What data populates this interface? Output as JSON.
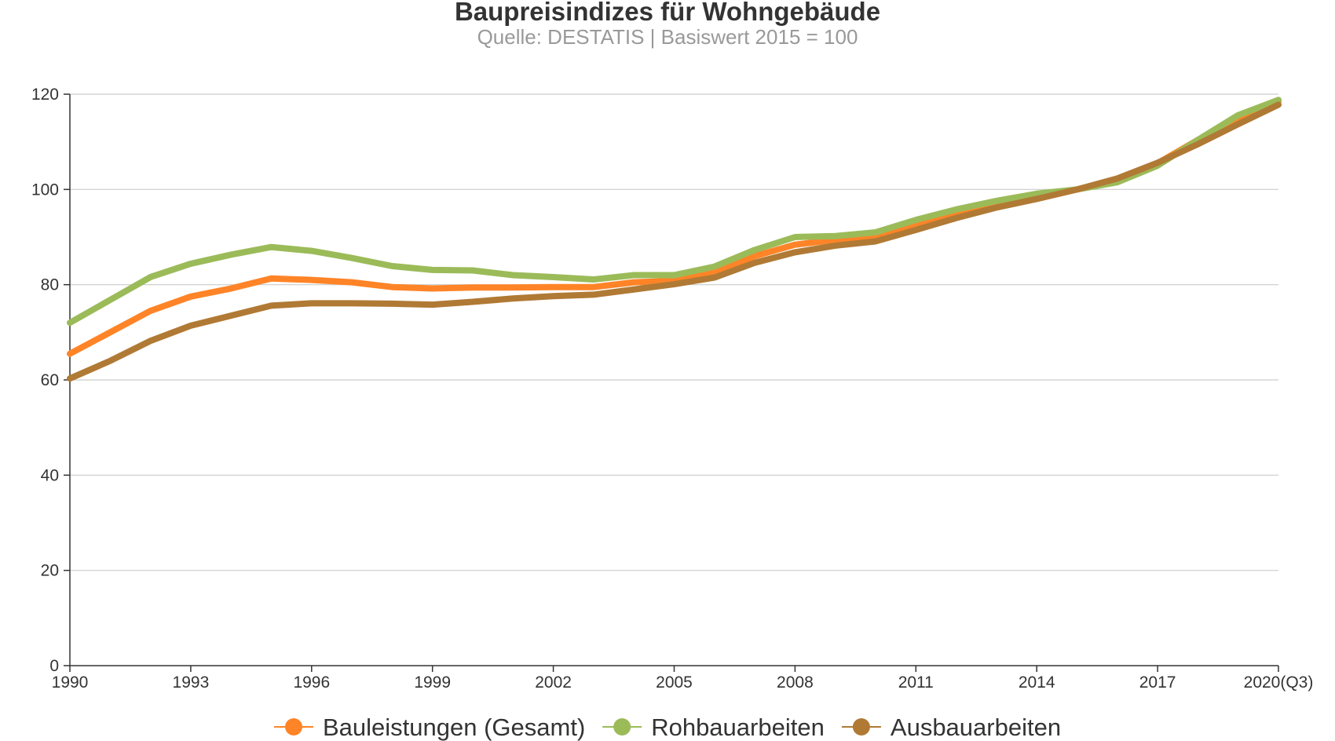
{
  "chart_data": {
    "type": "line",
    "title": "Baupreisindizes für Wohngebäude",
    "subtitle": "Quelle: DESTATIS | Basiswert 2015 = 100",
    "xlabel": "",
    "ylabel": "",
    "x": [
      1990,
      1991,
      1992,
      1993,
      1994,
      1995,
      1996,
      1997,
      1998,
      1999,
      2000,
      2001,
      2002,
      2003,
      2004,
      2005,
      2006,
      2007,
      2008,
      2009,
      2010,
      2011,
      2012,
      2013,
      2014,
      2015,
      2016,
      2017,
      2018,
      2019,
      2020
    ],
    "x_ticks": [
      {
        "value": 1990,
        "label": "1990"
      },
      {
        "value": 1993,
        "label": "1993"
      },
      {
        "value": 1996,
        "label": "1996"
      },
      {
        "value": 1999,
        "label": "1999"
      },
      {
        "value": 2002,
        "label": "2002"
      },
      {
        "value": 2005,
        "label": "2005"
      },
      {
        "value": 2008,
        "label": "2008"
      },
      {
        "value": 2011,
        "label": "2011"
      },
      {
        "value": 2014,
        "label": "2014"
      },
      {
        "value": 2017,
        "label": "2017"
      },
      {
        "value": 2020,
        "label": "2020(Q3)"
      }
    ],
    "xlim": [
      1990,
      2020
    ],
    "y_ticks": [
      0,
      20,
      40,
      60,
      80,
      100,
      120
    ],
    "ylim": [
      0,
      120
    ],
    "grid": true,
    "legend_position": "bottom",
    "series": [
      {
        "name": "Bauleistungen (Gesamt)",
        "color": "#ff8427",
        "values": [
          65.5,
          70,
          74.5,
          77.5,
          79.2,
          81.3,
          81,
          80.5,
          79.5,
          79.2,
          79.4,
          79.4,
          79.5,
          79.5,
          80.5,
          80.8,
          82.6,
          86,
          88.4,
          89.4,
          90.1,
          92.5,
          94.6,
          96.5,
          98.4,
          100,
          101.9,
          105.5,
          110.4,
          115,
          118.5
        ]
      },
      {
        "name": "Rohbauarbeiten",
        "color": "#9bbb59",
        "values": [
          72,
          76.8,
          81.6,
          84.4,
          86.3,
          87.9,
          87.1,
          85.6,
          83.9,
          83.1,
          83,
          82,
          81.6,
          81.1,
          82,
          82,
          83.8,
          87.3,
          90,
          90.2,
          91,
          93.6,
          95.8,
          97.6,
          99.1,
          100,
          101.5,
          105,
          110.4,
          115.6,
          118.8
        ]
      },
      {
        "name": "Ausbauarbeiten",
        "color": "#b07a35",
        "values": [
          60.3,
          64,
          68.2,
          71.4,
          73.5,
          75.6,
          76.1,
          76.1,
          76,
          75.8,
          76.4,
          77.1,
          77.6,
          77.9,
          79,
          80.1,
          81.5,
          84.6,
          86.8,
          88.2,
          89.1,
          91.5,
          94,
          96.2,
          98,
          100,
          102.3,
          105.6,
          109.5,
          113.7,
          117.8
        ]
      }
    ]
  }
}
